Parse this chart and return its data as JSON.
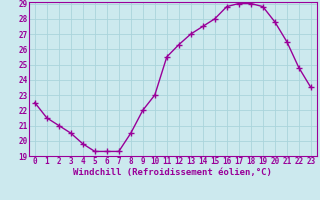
{
  "x": [
    0,
    1,
    2,
    3,
    4,
    5,
    6,
    7,
    8,
    9,
    10,
    11,
    12,
    13,
    14,
    15,
    16,
    17,
    18,
    19,
    20,
    21,
    22,
    23
  ],
  "y": [
    22.5,
    21.5,
    21.0,
    20.5,
    19.8,
    19.3,
    19.3,
    19.3,
    20.5,
    22.0,
    23.0,
    25.5,
    26.3,
    27.0,
    27.5,
    28.0,
    28.8,
    29.0,
    29.0,
    28.8,
    27.8,
    26.5,
    24.8,
    23.5
  ],
  "line_color": "#990099",
  "marker": "+",
  "marker_size": 4,
  "line_width": 1.0,
  "xlabel": "Windchill (Refroidissement éolien,°C)",
  "ylim": [
    19,
    29
  ],
  "xlim": [
    -0.5,
    23.5
  ],
  "yticks": [
    19,
    20,
    21,
    22,
    23,
    24,
    25,
    26,
    27,
    28,
    29
  ],
  "xticks": [
    0,
    1,
    2,
    3,
    4,
    5,
    6,
    7,
    8,
    9,
    10,
    11,
    12,
    13,
    14,
    15,
    16,
    17,
    18,
    19,
    20,
    21,
    22,
    23
  ],
  "bg_color": "#cce9ee",
  "grid_color": "#aad4dc",
  "tick_label_fontsize": 5.5,
  "xlabel_fontsize": 6.5
}
